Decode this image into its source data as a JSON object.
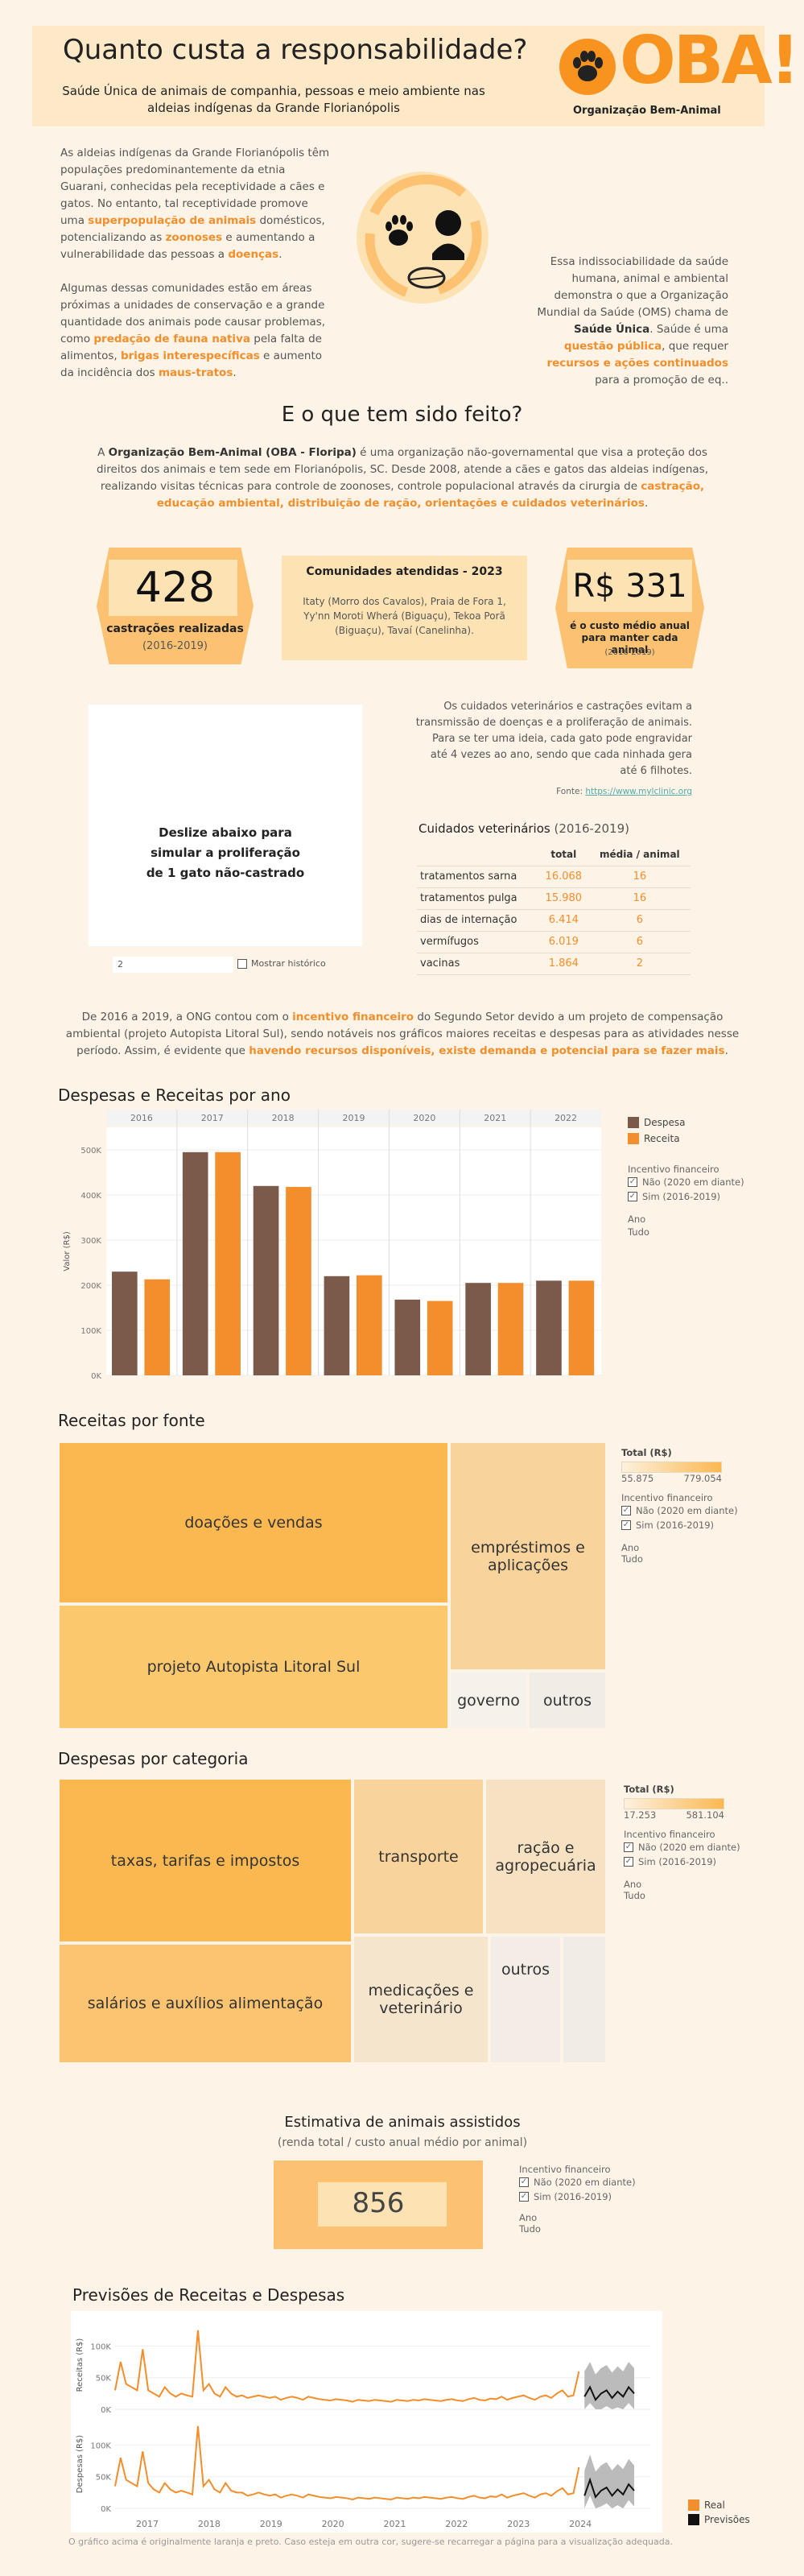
{
  "header": {
    "title": "Quanto custa a responsabilidade?",
    "subtitle": "Saúde Única de animais de companhia, pessoas e meio ambiente nas aldeias indígenas da Grande Florianópolis",
    "logo_text": "OBA!",
    "logo_subtitle": "Organização Bem-Animal"
  },
  "intro": {
    "p1_a": "As aldeias indígenas da Grande Florianópolis têm populações predominantemente da etnia Guarani, conhecidas pela receptividade a cães e gatos. No entanto, tal receptividade promove uma ",
    "p1_h1": "superpopulação de animais",
    "p1_b": " domésticos, potencializando as ",
    "p1_h2": "zoonoses",
    "p1_c": " e aumentando a vulnerabilidade das pessoas a ",
    "p1_h3": "doenças",
    "p1_d": ".",
    "p2_a": "Algumas dessas comunidades estão em áreas próximas a unidades de conservação e a grande quantidade dos animais pode causar problemas, como ",
    "p2_h1": "predação de fauna nativa",
    "p2_b": " pela falta de alimentos, ",
    "p2_h2": "brigas interespecíficas",
    "p2_c": " e aumento da incidência dos ",
    "p2_h3": "maus-tratos",
    "p2_d": ".",
    "p3_a": "Essa indissociabilidade da saúde humana, animal e ambiental demonstra o que a Organização Mundial da Saúde (OMS) chama de ",
    "p3_h1": "Saúde Única",
    "p3_b": ". Saúde é uma ",
    "p3_h2": "questão pública",
    "p3_c": ", que requer ",
    "p3_h3": "recursos e ações continuados",
    "p3_d": " para a promoção de eq.."
  },
  "section2": {
    "title": "E o que tem sido feito?",
    "p_a": "A ",
    "p_h1": "Organização Bem-Animal (OBA - Floripa)",
    "p_b": " é uma organização não-governamental que visa a proteção dos direitos dos animais e tem sede em Florianópolis, SC. Desde 2008, atende a cães e gatos das aldeias indígenas, realizando visitas técnicas para controle de zoonoses, controle populacional através da cirurgia de ",
    "p_h2": "castração, educação ambiental, distribuição de ração, orientações e cuidados veterinários",
    "p_c": "."
  },
  "stats": {
    "castracoes_value": "428",
    "castracoes_label": "castrações realizadas",
    "castracoes_period": "(2016-2019)",
    "comunidades_title": "Comunidades atendidas - 2023",
    "comunidades_text": "Itaty (Morro dos Cavalos), Praia de Fora 1, Yy'nn Moroti Wherá (Biguaçu), Tekoa Porã (Biguaçu), Tavaí (Canelinha).",
    "custo_value": "R$ 331",
    "custo_label": "é o custo médio anual para manter cada animal",
    "custo_period": "(2016-2019)"
  },
  "simulation": {
    "text": "Deslize abaixo para simular a proliferação de 1 gato não-castrado",
    "slider_value": "2",
    "history_label": "Mostrar histórico"
  },
  "vet": {
    "text": "Os cuidados veterinários e castrações evitam a transmissão de doenças e a proliferação de animais. Para se ter uma ideia, cada gato pode engravidar até 4 vezes ao ano, sendo que cada ninhada gera até 6 filhotes.",
    "source_label": "Fonte: ",
    "source_link": "https://www.mylclinic.org",
    "table_title": "Cuidados veterinários",
    "table_period": "(2016-2019)",
    "col_total": "total",
    "col_media": "média / animal",
    "rows": [
      {
        "label": "tratamentos sarna",
        "total": "16.068",
        "media": "16"
      },
      {
        "label": "tratamentos pulga",
        "total": "15.980",
        "media": "16"
      },
      {
        "label": "dias de internação",
        "total": "6.414",
        "media": "6"
      },
      {
        "label": "vermífugos",
        "total": "6.019",
        "media": "6"
      },
      {
        "label": "vacinas",
        "total": "1.864",
        "media": "2"
      }
    ]
  },
  "funding": {
    "p_a": "De 2016 a 2019, a ONG contou com o ",
    "p_h1": "incentivo financeiro",
    "p_b": " do Segundo Setor devido a um projeto de compensação ambiental (projeto Autopista Litoral Sul), sendo notáveis nos gráficos maiores receitas e despesas para as atividades nesse período. Assim, é evidente que ",
    "p_h2": "havendo recursos disponíveis, existe demanda e potencial para se fazer mais",
    "p_c": "."
  },
  "filters": {
    "title": "Incentivo financeiro",
    "opt1": "Não (2020 em diante)",
    "opt2": "Sim (2016-2019)",
    "year_title": "Ano",
    "year_value": "Tudo",
    "total_title": "Total (R$)"
  },
  "bar_section": {
    "title": "Despesas e Receitas por ano",
    "legend_despesa": "Despesa",
    "legend_receita": "Receita",
    "ylabel": "Valor (R$)"
  },
  "receitas_section": {
    "title": "Receitas por fonte",
    "scale_min": "55.875",
    "scale_max": "779.054"
  },
  "despesas_section": {
    "title": "Despesas por categoria",
    "scale_min": "17.253",
    "scale_max": "581.104"
  },
  "estimate": {
    "title": "Estimativa de animais assistidos",
    "subtitle": "(renda total / custo anual médio por animal)",
    "value": "856"
  },
  "forecast": {
    "title": "Previsões de Receitas e Despesas",
    "y1": "Receitas (R$)",
    "y2": "Despesas (R$)",
    "legend_real": "Real",
    "legend_prev": "Previsões",
    "footnote": "O gráfico acima é originalmente laranja e preto. Caso esteja em outra cor, sugere-se recarregar a página para a visualização adequada."
  },
  "colors": {
    "orange": "#f28e2b",
    "brown": "#7b5a4a",
    "light_orange": "#fcc272",
    "black": "#111111"
  },
  "chart_data": [
    {
      "type": "bar",
      "title": "Despesas e Receitas por ano",
      "categories": [
        "2016",
        "2017",
        "2018",
        "2019",
        "2020",
        "2021",
        "2022"
      ],
      "ylabel": "Valor (R$)",
      "ylim": [
        0,
        550000
      ],
      "yticks": [
        "0K",
        "100K",
        "200K",
        "300K",
        "400K",
        "500K"
      ],
      "series": [
        {
          "name": "Despesa",
          "values": [
            230000,
            495000,
            420000,
            220000,
            168000,
            205000,
            210000
          ]
        },
        {
          "name": "Receita",
          "values": [
            213000,
            495000,
            418000,
            222000,
            165000,
            205000,
            210000
          ]
        }
      ]
    },
    {
      "type": "heatmap",
      "title": "Receitas por fonte",
      "labels": [
        "doações e vendas",
        "projeto Autopista Litoral Sul",
        "empréstimos e aplicações",
        "governo",
        "outros"
      ]
    },
    {
      "type": "heatmap",
      "title": "Despesas por categoria",
      "labels": [
        "taxas, tarifas e impostos",
        "salários e auxílios alimentação",
        "transporte",
        "ração e agropecuária",
        "medicações e veterinário",
        "outros"
      ]
    },
    {
      "type": "line",
      "title": "Previsões de Receitas e Despesas",
      "x_ticks": [
        "2017",
        "2018",
        "2019",
        "2020",
        "2021",
        "2022",
        "2023",
        "2024"
      ],
      "y_ticks": [
        "0K",
        "50K",
        "100K"
      ],
      "series": [
        {
          "name": "Real",
          "chart": "Receitas",
          "values": [
            30000,
            75000,
            40000,
            35000,
            30000,
            95000,
            30000,
            25000,
            20000,
            35000,
            25000,
            20000,
            25000,
            22000,
            20000,
            125000,
            30000,
            40000,
            25000,
            20000,
            35000,
            25000,
            20000,
            22000,
            18000,
            20000,
            22000,
            20000,
            18000,
            20000,
            15000,
            18000,
            20000,
            18000,
            15000,
            20000,
            18000,
            16000,
            15000,
            14000,
            16000,
            15000,
            14000,
            12000,
            15000,
            14000,
            13000,
            15000,
            14000,
            13000,
            12000,
            15000,
            14000,
            13000,
            15000,
            14000,
            16000,
            15000,
            14000,
            13000,
            15000,
            16000,
            14000,
            13000,
            16000,
            18000,
            15000,
            14000,
            17000,
            16000,
            20000,
            15000,
            18000,
            20000,
            22000,
            18000,
            15000,
            20000,
            22000,
            18000,
            25000,
            30000,
            20000,
            22000,
            60000
          ]
        },
        {
          "name": "Previsões",
          "chart": "Receitas",
          "values": [
            20000,
            35000,
            15000,
            25000,
            30000,
            18000,
            28000,
            20000,
            35000,
            25000
          ]
        },
        {
          "name": "Real",
          "chart": "Despesas",
          "values": [
            35000,
            80000,
            45000,
            40000,
            35000,
            90000,
            40000,
            30000,
            25000,
            40000,
            30000,
            25000,
            28000,
            25000,
            22000,
            130000,
            35000,
            45000,
            30000,
            25000,
            40000,
            28000,
            25000,
            25000,
            20000,
            22000,
            25000,
            22000,
            20000,
            22000,
            17000,
            20000,
            22000,
            20000,
            17000,
            22000,
            20000,
            18000,
            17000,
            16000,
            18000,
            17000,
            16000,
            14000,
            17000,
            16000,
            15000,
            17000,
            16000,
            15000,
            14000,
            17000,
            16000,
            15000,
            17000,
            16000,
            18000,
            17000,
            16000,
            15000,
            17000,
            18000,
            16000,
            15000,
            18000,
            20000,
            17000,
            16000,
            19000,
            18000,
            22000,
            17000,
            20000,
            22000,
            24000,
            20000,
            17000,
            22000,
            24000,
            20000,
            27000,
            32000,
            22000,
            24000,
            65000
          ]
        },
        {
          "name": "Previsões",
          "chart": "Despesas",
          "values": [
            20000,
            45000,
            18000,
            28000,
            33000,
            20000,
            30000,
            22000,
            38000,
            28000
          ]
        }
      ]
    }
  ]
}
